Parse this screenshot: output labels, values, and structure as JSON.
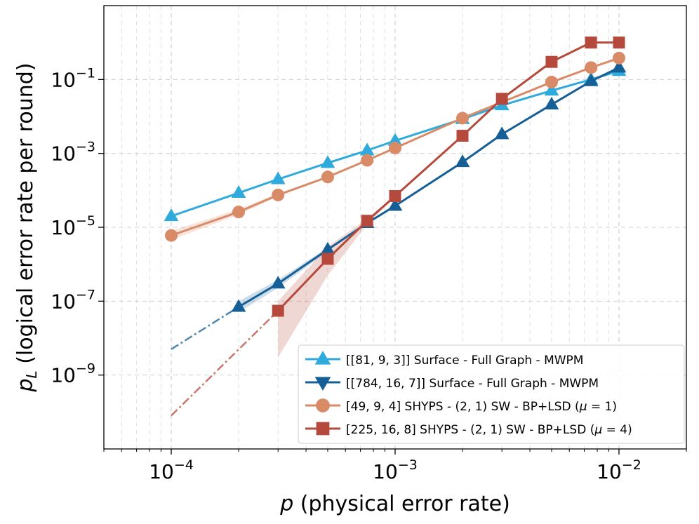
{
  "chart_data": {
    "type": "line",
    "xscale": "log",
    "yscale": "log",
    "xlim": [
      5e-05,
      0.02
    ],
    "ylim": [
      1e-11,
      10
    ],
    "xlabel_var": "p",
    "xlabel_text": " (physical error rate)",
    "ylabel_var": "p",
    "ylabel_sub": "L",
    "ylabel_text": " (logical error rate per round)",
    "x_ticks": [
      {
        "value": 0.0001,
        "base": "10",
        "exp": "−4"
      },
      {
        "value": 0.001,
        "base": "10",
        "exp": "−3"
      },
      {
        "value": 0.01,
        "base": "10",
        "exp": "−2"
      }
    ],
    "y_ticks": [
      {
        "value": 1e-09,
        "base": "10",
        "exp": "−9"
      },
      {
        "value": 1e-07,
        "base": "10",
        "exp": "−7"
      },
      {
        "value": 1e-05,
        "base": "10",
        "exp": "−5"
      },
      {
        "value": 0.001,
        "base": "10",
        "exp": "−3"
      },
      {
        "value": 0.1,
        "base": "10",
        "exp": "−1"
      }
    ],
    "grid": true,
    "legend_position": "lower-right",
    "series": [
      {
        "name": "[[81, 9, 3]] Surface - Full Graph - MWPM",
        "color": "#2eaadc",
        "marker": "triangle-up",
        "x": [
          0.0001,
          0.0002,
          0.0003,
          0.0005,
          0.00075,
          0.001,
          0.002,
          0.003,
          0.005,
          0.0075,
          0.01
        ],
        "y": [
          2e-05,
          8.5e-05,
          0.0002,
          0.00055,
          0.0012,
          0.0022,
          0.0085,
          0.02,
          0.05,
          0.1,
          0.17
        ]
      },
      {
        "name": "[[784, 16, 7]] Surface - Full Graph - MWPM",
        "color": "#165f96",
        "marker": "triangle-up",
        "x": [
          0.0002,
          0.0003,
          0.0005,
          0.00075,
          0.001,
          0.002,
          0.003,
          0.005,
          0.0075,
          0.01
        ],
        "y": [
          7e-08,
          3e-07,
          2.5e-06,
          1.3e-05,
          3.8e-05,
          0.00058,
          0.0033,
          0.021,
          0.09,
          0.21
        ],
        "extrapolation": {
          "x": [
            0.0001,
            0.0002
          ],
          "y": [
            5e-09,
            7e-08
          ]
        },
        "band": {
          "x": [
            0.0002,
            0.0003,
            0.0005
          ],
          "lower": [
            5e-08,
            2.3e-07,
            2.2e-06
          ],
          "upper": [
            1e-07,
            3.8e-07,
            2.8e-06
          ]
        }
      },
      {
        "name": "[49, 9, 4] SHYPS - (2, 1) SW - BP+LSD",
        "mu": "1",
        "color": "#d98a66",
        "marker": "circle",
        "x": [
          0.0001,
          0.0002,
          0.0003,
          0.0005,
          0.00075,
          0.001,
          0.002,
          0.005,
          0.0075,
          0.01
        ],
        "y": [
          6e-06,
          2.6e-05,
          7.5e-05,
          0.00023,
          0.00065,
          0.0014,
          0.009,
          0.085,
          0.21,
          0.38
        ],
        "band": {
          "x": [
            0.0001,
            0.0002,
            0.0003
          ],
          "lower": [
            4.5e-06,
            2.2e-05,
            6.8e-05
          ],
          "upper": [
            8e-06,
            3.1e-05,
            8.2e-05
          ]
        }
      },
      {
        "name": "[225, 16, 8] SHYPS - (2, 1) SW - BP+LSD",
        "mu": "4",
        "color": "#b54a3c",
        "marker": "square",
        "x": [
          0.0003,
          0.0005,
          0.00075,
          0.001,
          0.002,
          0.003,
          0.005,
          0.0075,
          0.01
        ],
        "y": [
          5.5e-08,
          1.4e-06,
          1.5e-05,
          7e-05,
          0.003,
          0.03,
          0.3,
          1,
          1
        ],
        "extrapolation": {
          "x": [
            0.0001,
            0.0003
          ],
          "y": [
            8e-11,
            5.5e-08
          ]
        },
        "band": {
          "x": [
            0.0003,
            0.0005,
            0.00075,
            0.001
          ],
          "lower": [
            3e-09,
            5e-07,
            1.2e-05,
            6.5e-05
          ],
          "upper": [
            1e-07,
            3e-06,
            1.7e-05,
            7.5e-05
          ]
        }
      }
    ]
  }
}
